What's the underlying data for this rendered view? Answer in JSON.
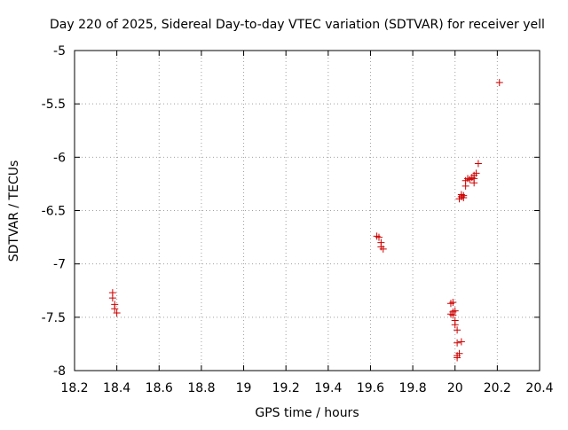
{
  "chart_data": {
    "type": "scatter",
    "title": "Day 220 of 2025, Sidereal Day-to-day VTEC variation (SDTVAR) for receiver yell",
    "xlabel": "GPS time / hours",
    "ylabel": "SDTVAR / TECUs",
    "xlim": [
      18.2,
      20.4
    ],
    "ylim": [
      -8,
      -5
    ],
    "xticks": [
      18.2,
      18.4,
      18.6,
      18.8,
      19,
      19.2,
      19.4,
      19.6,
      19.8,
      20,
      20.2,
      20.4
    ],
    "xtick_labels": [
      "18.2",
      "18.4",
      "18.6",
      "18.8",
      "19",
      "19.2",
      "19.4",
      "19.6",
      "19.8",
      "20",
      "20.2",
      "20.4"
    ],
    "yticks": [
      -8,
      -7.5,
      -7,
      -6.5,
      -6,
      -5.5,
      -5
    ],
    "ytick_labels": [
      "-8",
      "-7.5",
      "-7",
      "-6.5",
      "-6",
      "-5.5",
      "-5"
    ],
    "grid": true,
    "marker": "+",
    "color": "#cc0000",
    "series": [
      {
        "name": "SDTVAR",
        "points": [
          [
            18.38,
            -7.27
          ],
          [
            18.38,
            -7.32
          ],
          [
            18.39,
            -7.38
          ],
          [
            18.39,
            -7.42
          ],
          [
            18.4,
            -7.46
          ],
          [
            19.63,
            -6.74
          ],
          [
            19.64,
            -6.75
          ],
          [
            19.65,
            -6.8
          ],
          [
            19.65,
            -6.84
          ],
          [
            19.66,
            -6.86
          ],
          [
            19.98,
            -7.37
          ],
          [
            19.99,
            -7.36
          ],
          [
            19.99,
            -7.45
          ],
          [
            19.99,
            -7.48
          ],
          [
            19.98,
            -7.47
          ],
          [
            20.0,
            -7.44
          ],
          [
            20.0,
            -7.53
          ],
          [
            20.0,
            -7.57
          ],
          [
            20.01,
            -7.62
          ],
          [
            20.01,
            -7.74
          ],
          [
            20.03,
            -7.73
          ],
          [
            20.02,
            -7.84
          ],
          [
            20.01,
            -7.86
          ],
          [
            20.01,
            -7.88
          ],
          [
            20.02,
            -6.39
          ],
          [
            20.03,
            -6.37
          ],
          [
            20.03,
            -6.35
          ],
          [
            20.04,
            -6.36
          ],
          [
            20.04,
            -6.38
          ],
          [
            20.05,
            -6.27
          ],
          [
            20.05,
            -6.22
          ],
          [
            20.06,
            -6.2
          ],
          [
            20.07,
            -6.21
          ],
          [
            20.08,
            -6.19
          ],
          [
            20.09,
            -6.2
          ],
          [
            20.09,
            -6.17
          ],
          [
            20.1,
            -6.15
          ],
          [
            20.11,
            -6.06
          ],
          [
            20.09,
            -6.24
          ],
          [
            20.21,
            -5.3
          ]
        ]
      }
    ]
  }
}
